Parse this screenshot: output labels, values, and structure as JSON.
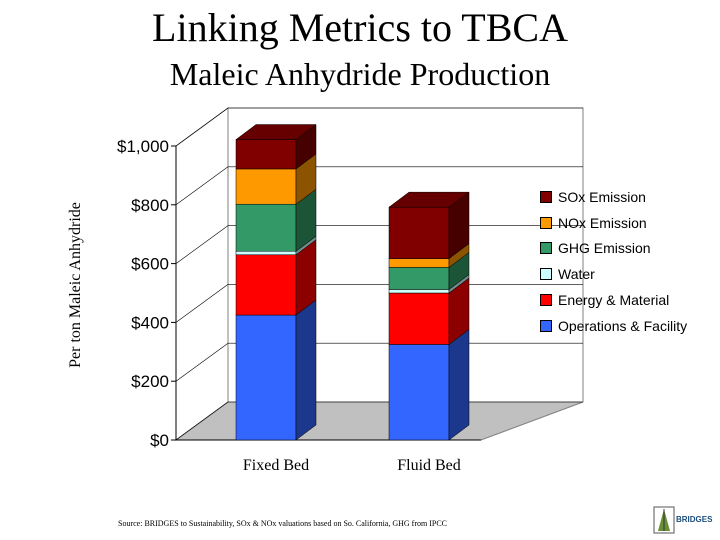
{
  "title": "Linking Metrics to TBCA",
  "subtitle": "Maleic Anhydride Production",
  "source_text": "Source: BRIDGES to Sustainability, SOx & NOx valuations based on So. California, GHG from IPCC",
  "logo": {
    "text": "BRIDGES"
  },
  "chart_data": {
    "type": "bar",
    "stacked": true,
    "style": "3d",
    "ylabel": "Per ton Maleic Anhydride",
    "ylim": [
      0,
      1000
    ],
    "yticks": [
      "$0",
      "$200",
      "$400",
      "$600",
      "$800",
      "$1,000"
    ],
    "categories": [
      "Fixed Bed",
      "Fluid Bed"
    ],
    "series": [
      {
        "name": "Operations & Facility",
        "color": "#3366ff",
        "values": [
          425,
          325
        ]
      },
      {
        "name": "Energy & Material",
        "color": "#ff0000",
        "values": [
          205,
          175
        ]
      },
      {
        "name": "Water",
        "color": "#ccffff",
        "values": [
          12,
          12
        ]
      },
      {
        "name": "GHG Emission",
        "color": "#339966",
        "values": [
          160,
          75
        ]
      },
      {
        "name": "NOx Emission",
        "color": "#ff9900",
        "values": [
          120,
          30
        ]
      },
      {
        "name": "SOx Emission",
        "color": "#800000",
        "values": [
          100,
          175
        ]
      }
    ],
    "legend_position": "right"
  }
}
